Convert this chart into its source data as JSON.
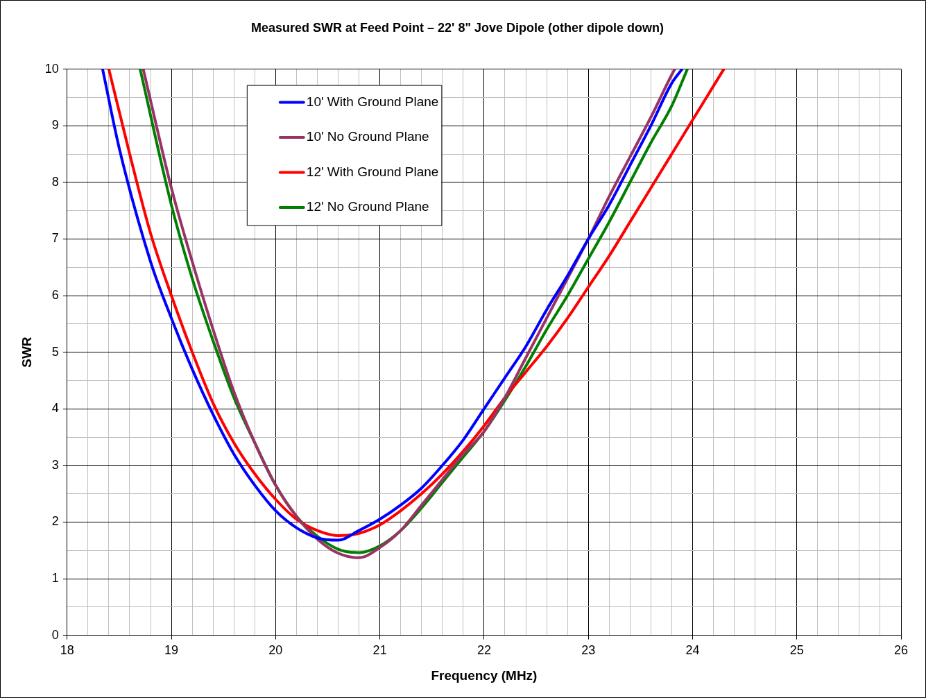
{
  "chart_data": {
    "type": "line",
    "title": "Measured SWR at Feed Point – 22' 8\" Jove Dipole (other dipole down)",
    "xlabel": "Frequency (MHz)",
    "ylabel": "SWR",
    "xlim": [
      18,
      26
    ],
    "ylim": [
      0,
      10
    ],
    "xticks": [
      18,
      {
        "value": 18.2,
        "label": null
      },
      {
        "value": 18.4,
        "label": null
      },
      {
        "value": 18.6,
        "label": null
      },
      {
        "value": 18.8,
        "label": null
      },
      19,
      {
        "value": 19.2,
        "label": null
      },
      {
        "value": 19.4,
        "label": null
      },
      {
        "value": 19.6,
        "label": null
      },
      {
        "value": 19.8,
        "label": null
      },
      20,
      {
        "value": 20.2,
        "label": null
      },
      {
        "value": 20.4,
        "label": null
      },
      {
        "value": 20.6,
        "label": null
      },
      {
        "value": 20.8,
        "label": null
      },
      21,
      {
        "value": 21.2,
        "label": null
      },
      {
        "value": 21.4,
        "label": null
      },
      {
        "value": 21.6,
        "label": null
      },
      {
        "value": 21.8,
        "label": null
      },
      22,
      {
        "value": 22.2,
        "label": null
      },
      {
        "value": 22.4,
        "label": null
      },
      {
        "value": 22.6,
        "label": null
      },
      {
        "value": 22.8,
        "label": null
      },
      23,
      {
        "value": 23.2,
        "label": null
      },
      {
        "value": 23.4,
        "label": null
      },
      {
        "value": 23.6,
        "label": null
      },
      {
        "value": 23.8,
        "label": null
      },
      24,
      {
        "value": 24.2,
        "label": null
      },
      {
        "value": 24.4,
        "label": null
      },
      {
        "value": 24.6,
        "label": null
      },
      {
        "value": 24.8,
        "label": null
      },
      25,
      {
        "value": 25.2,
        "label": null
      },
      {
        "value": 25.4,
        "label": null
      },
      {
        "value": 25.6,
        "label": null
      },
      {
        "value": 25.8,
        "label": null
      },
      26
    ],
    "yticks": [
      0,
      {
        "value": 0.5,
        "label": null
      },
      1,
      {
        "value": 1.5,
        "label": null
      },
      2,
      {
        "value": 2.5,
        "label": null
      },
      3,
      {
        "value": 3.5,
        "label": null
      },
      4,
      {
        "value": 4.5,
        "label": null
      },
      5,
      {
        "value": 5.5,
        "label": null
      },
      6,
      {
        "value": 6.5,
        "label": null
      },
      7,
      {
        "value": 7.5,
        "label": null
      },
      8,
      {
        "value": 8.5,
        "label": null
      },
      9,
      {
        "value": 9.5,
        "label": null
      },
      10
    ],
    "grid": true,
    "legend": "top left",
    "marker": "none",
    "line_style": "solid",
    "series": [
      {
        "name": "10' With Ground Plane",
        "color": "#0000ff",
        "x": [
          18.34,
          18.5,
          18.8,
          19.0,
          19.2,
          19.4,
          19.6,
          19.8,
          20.0,
          20.2,
          20.4,
          20.6,
          20.8,
          21.0,
          21.2,
          21.4,
          21.6,
          21.8,
          22.0,
          22.2,
          22.4,
          22.6,
          22.8,
          23.0,
          23.2,
          23.4,
          23.6,
          23.8,
          23.9
        ],
        "values": [
          10,
          8.6,
          6.6,
          5.6,
          4.7,
          3.9,
          3.2,
          2.65,
          2.2,
          1.9,
          1.72,
          1.68,
          1.85,
          2.05,
          2.3,
          2.6,
          3.0,
          3.45,
          4.0,
          4.55,
          5.1,
          5.75,
          6.35,
          7.0,
          7.6,
          8.3,
          9.0,
          9.75,
          10
        ]
      },
      {
        "name": "10' No Ground Plane",
        "color": "#993366",
        "x": [
          18.73,
          19.0,
          19.2,
          19.4,
          19.6,
          19.8,
          20.0,
          20.2,
          20.4,
          20.6,
          20.8,
          21.0,
          21.2,
          21.4,
          21.6,
          21.8,
          22.0,
          22.2,
          22.4,
          22.6,
          22.8,
          23.0,
          23.2,
          23.4,
          23.6,
          23.8,
          23.83
        ],
        "values": [
          10,
          7.9,
          6.6,
          5.4,
          4.3,
          3.4,
          2.65,
          2.1,
          1.7,
          1.45,
          1.37,
          1.55,
          1.85,
          2.3,
          2.75,
          3.2,
          3.6,
          4.2,
          4.9,
          5.6,
          6.3,
          7.0,
          7.75,
          8.45,
          9.15,
          9.9,
          10
        ]
      },
      {
        "name": "12' With Ground Plane",
        "color": "#ff0000",
        "x": [
          18.4,
          18.6,
          18.8,
          19.0,
          19.2,
          19.4,
          19.6,
          19.8,
          20.0,
          20.2,
          20.4,
          20.6,
          20.8,
          21.0,
          21.2,
          21.4,
          21.6,
          21.8,
          22.0,
          22.2,
          22.4,
          22.6,
          22.8,
          23.0,
          23.2,
          23.4,
          23.6,
          23.8,
          24.0,
          24.2,
          24.3
        ],
        "values": [
          10,
          8.5,
          7.1,
          6.0,
          5.0,
          4.1,
          3.4,
          2.85,
          2.4,
          2.05,
          1.85,
          1.76,
          1.8,
          1.95,
          2.2,
          2.5,
          2.85,
          3.25,
          3.7,
          4.2,
          4.65,
          5.1,
          5.6,
          6.15,
          6.7,
          7.3,
          7.9,
          8.5,
          9.1,
          9.7,
          10
        ]
      },
      {
        "name": "12' No Ground Plane",
        "color": "#008000",
        "x": [
          18.7,
          19.0,
          19.2,
          19.4,
          19.6,
          19.8,
          20.0,
          20.2,
          20.4,
          20.6,
          20.8,
          21.0,
          21.2,
          21.4,
          21.6,
          21.8,
          22.0,
          22.2,
          22.4,
          22.6,
          22.8,
          23.0,
          23.2,
          23.4,
          23.6,
          23.8,
          23.95
        ],
        "values": [
          10,
          7.6,
          6.3,
          5.2,
          4.2,
          3.4,
          2.65,
          2.1,
          1.75,
          1.52,
          1.46,
          1.58,
          1.85,
          2.25,
          2.7,
          3.15,
          3.6,
          4.15,
          4.75,
          5.4,
          6.0,
          6.65,
          7.3,
          8.0,
          8.7,
          9.35,
          10
        ]
      }
    ]
  }
}
